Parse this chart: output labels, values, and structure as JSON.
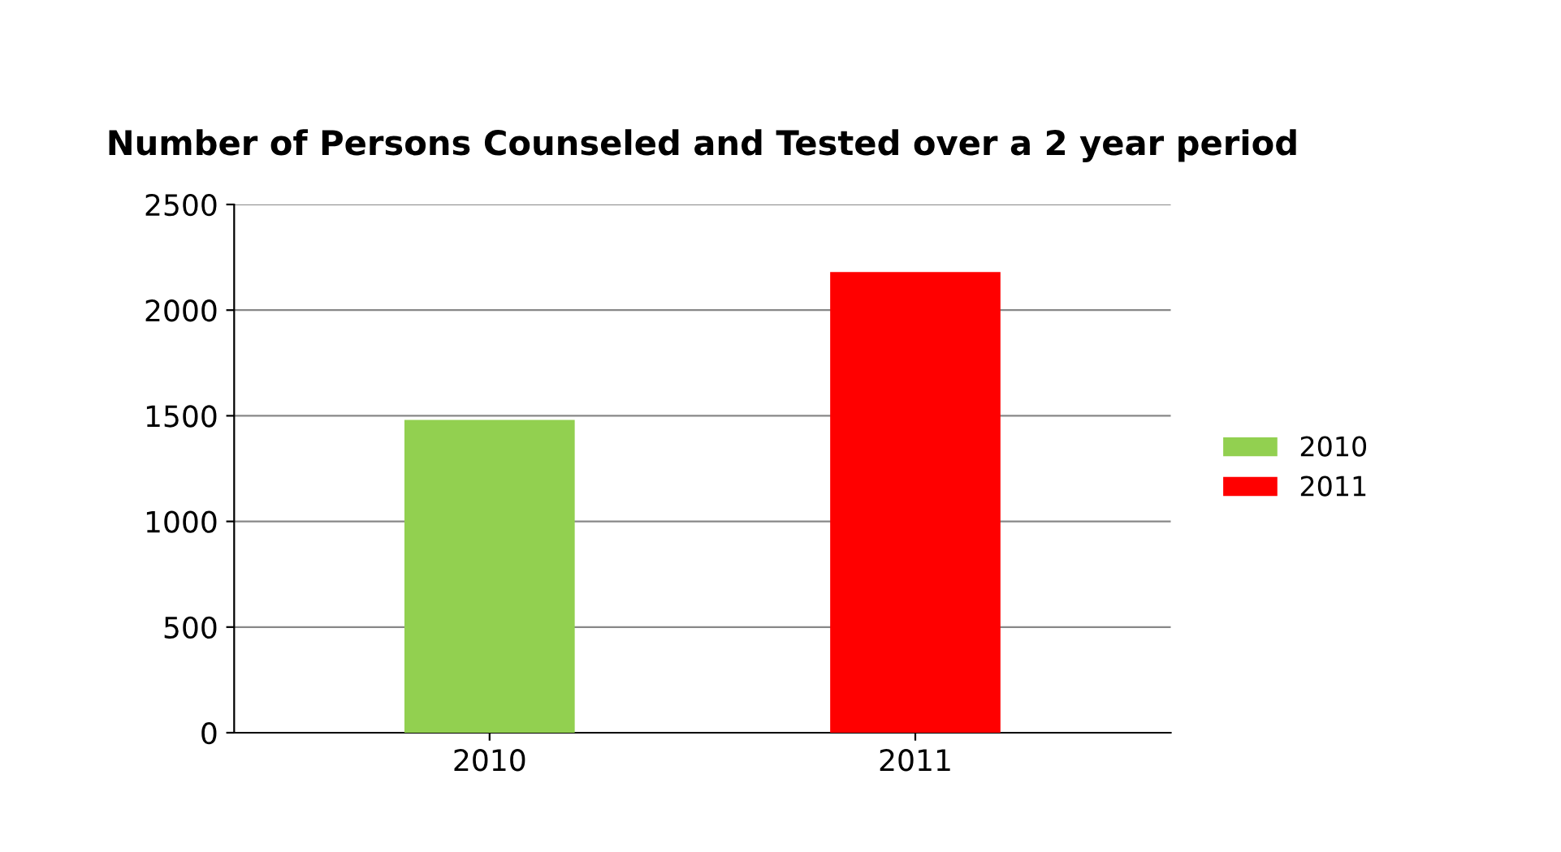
{
  "chart_data": {
    "type": "bar",
    "title": "Number of Persons Counseled and Tested over a 2 year period",
    "categories": [
      "2010",
      "2011"
    ],
    "series": [
      {
        "name": "2010",
        "color": "#92d050",
        "values": [
          1480,
          null
        ]
      },
      {
        "name": "2011",
        "color": "#ff0000",
        "values": [
          null,
          2180
        ]
      }
    ],
    "ylim": [
      0,
      2500
    ],
    "yticks": [
      0,
      500,
      1000,
      1500,
      2000,
      2500
    ],
    "grid": "y",
    "legend": "right"
  }
}
